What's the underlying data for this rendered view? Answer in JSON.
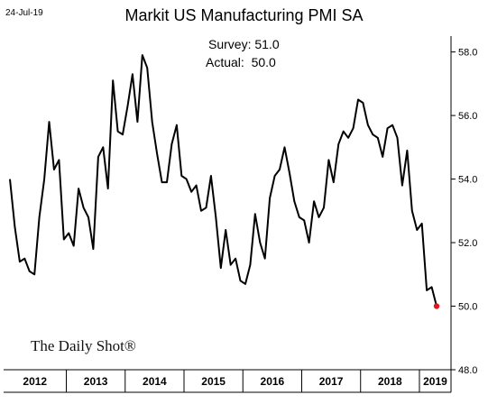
{
  "header": {
    "date": "24-Jul-19",
    "title": "Markit US Manufacturing PMI SA"
  },
  "annotations": {
    "survey": "Survey: 51.0",
    "actual": "Actual:  50.0"
  },
  "brand": "The Daily Shot®",
  "colors": {
    "line": "#000000",
    "latest_point": "#e8141b"
  },
  "chart_data": {
    "type": "line",
    "title": "Markit US Manufacturing PMI SA",
    "y_axis_side": "right",
    "ylim": [
      48.0,
      58.5
    ],
    "yticks": [
      48.0,
      50.0,
      52.0,
      54.0,
      56.0,
      58.0
    ],
    "ytick_labels": [
      "48.0",
      "50.0",
      "52.0",
      "54.0",
      "56.0",
      "58.0"
    ],
    "year_labels": [
      "2012",
      "2013",
      "2014",
      "2015",
      "2016",
      "2017",
      "2018",
      "2019"
    ],
    "grid": false,
    "series": [
      {
        "values": [
          54.0,
          52.5,
          51.4,
          51.5,
          51.1,
          51.0,
          52.8,
          54.0,
          55.8,
          54.3,
          54.6,
          52.1,
          52.3,
          51.9,
          53.7,
          53.1,
          52.8,
          51.8,
          54.7,
          55.0,
          53.7,
          57.1,
          55.5,
          55.4,
          56.3,
          57.3,
          55.8,
          57.9,
          57.5,
          55.8,
          54.8,
          53.9,
          53.9,
          55.1,
          55.7,
          54.1,
          54.0,
          53.6,
          53.8,
          53.0,
          53.1,
          54.1,
          52.8,
          51.2,
          52.4,
          51.3,
          51.5,
          50.8,
          50.7,
          51.3,
          52.9,
          52.0,
          51.5,
          53.4,
          54.1,
          54.3,
          55.0,
          54.2,
          53.3,
          52.8,
          52.7,
          52.0,
          53.3,
          52.8,
          53.1,
          54.6,
          53.9,
          55.1,
          55.5,
          55.3,
          55.6,
          56.5,
          56.4,
          55.7,
          55.4,
          55.3,
          54.7,
          55.6,
          55.7,
          55.3,
          53.8,
          54.9,
          53.0,
          52.4,
          52.6,
          50.5,
          50.6,
          50.0
        ]
      }
    ],
    "latest": {
      "label": "Actual",
      "value": 50.0
    }
  }
}
